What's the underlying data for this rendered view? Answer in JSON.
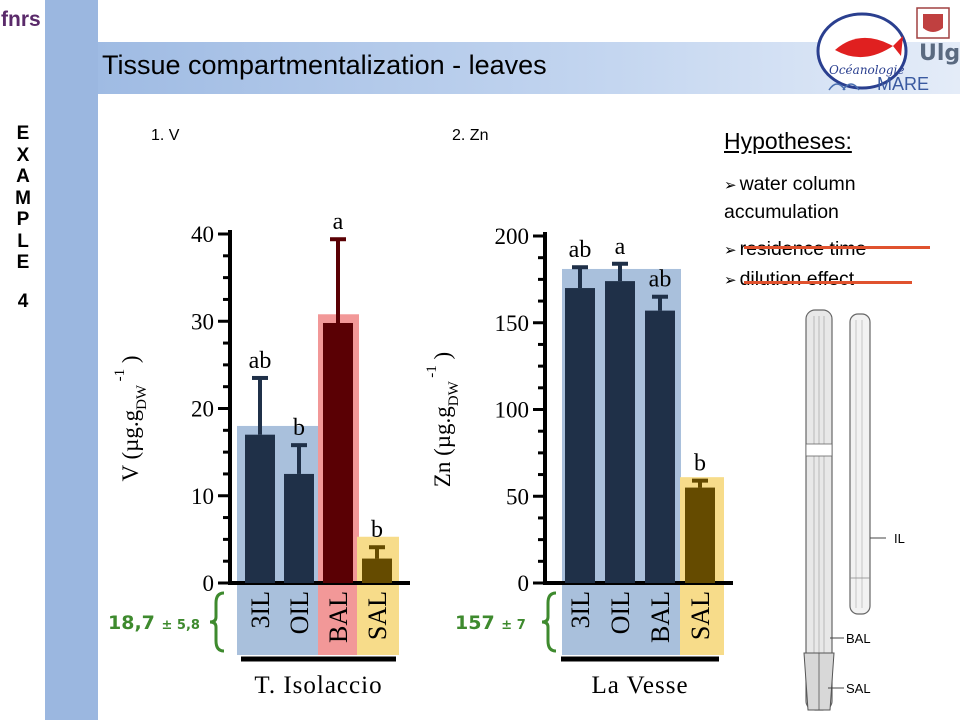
{
  "header": {
    "logo_text": "fnrs",
    "title": "Tissue compartmentalization - leaves",
    "example_letters": [
      "E",
      "X",
      "A",
      "M",
      "P",
      "L",
      "E"
    ],
    "example_number": "4",
    "right_logos": [
      "Océanologie",
      "Ulg",
      "MARE"
    ]
  },
  "hypotheses": {
    "title": "Hypotheses:",
    "items": [
      {
        "text": "water column accumulation",
        "struck": false
      },
      {
        "text": "residence time",
        "struck": true
      },
      {
        "text": "dilution effect",
        "struck": true
      }
    ]
  },
  "leaf_sketch": {
    "labels": [
      "IL",
      "BAL",
      "SAL"
    ]
  },
  "colors": {
    "bar_dark_blue": "#1f3048",
    "bar_dark_red": "#5a0004",
    "bar_olive": "#654b00",
    "bg_blue": "#a9c0dc",
    "bg_red": "#f29898",
    "bg_yellow": "#f7dc8a",
    "accent_green": "#3e8a2e",
    "strike_red": "#e0522e"
  },
  "chart_data": [
    {
      "type": "bar",
      "panel_title": "1. V",
      "ylabel": "V (µg.g",
      "ylabel_sub": "DW",
      "ylabel_sup": "-1",
      "ylabel_close": ")",
      "ylim": [
        0,
        40
      ],
      "yticks": [
        "0",
        "10",
        "20",
        "30",
        "40"
      ],
      "categories": [
        "3IL",
        "OIL",
        "BAL",
        "SAL"
      ],
      "values": [
        17.0,
        12.5,
        29.8,
        2.8
      ],
      "errors": [
        6.5,
        3.3,
        9.6,
        1.3
      ],
      "letters": [
        "ab",
        "b",
        "a",
        "b"
      ],
      "site": "T. Isolaccio",
      "mean_label": "18,7",
      "mean_pm": "± 5,8"
    },
    {
      "type": "bar",
      "panel_title": "2. Zn",
      "ylabel": "Zn (µg.g",
      "ylabel_sub": "DW",
      "ylabel_sup": "-1",
      "ylabel_close": ")",
      "ylim": [
        0,
        200
      ],
      "yticks": [
        "0",
        "50",
        "100",
        "150",
        "200"
      ],
      "categories": [
        "3IL",
        "OIL",
        "BAL",
        "SAL"
      ],
      "values": [
        170,
        174,
        157,
        55
      ],
      "errors": [
        12,
        10,
        8,
        4
      ],
      "letters": [
        "ab",
        "a",
        "ab",
        "b"
      ],
      "site": "La Vesse",
      "mean_label": "157",
      "mean_pm": "± 7"
    }
  ]
}
